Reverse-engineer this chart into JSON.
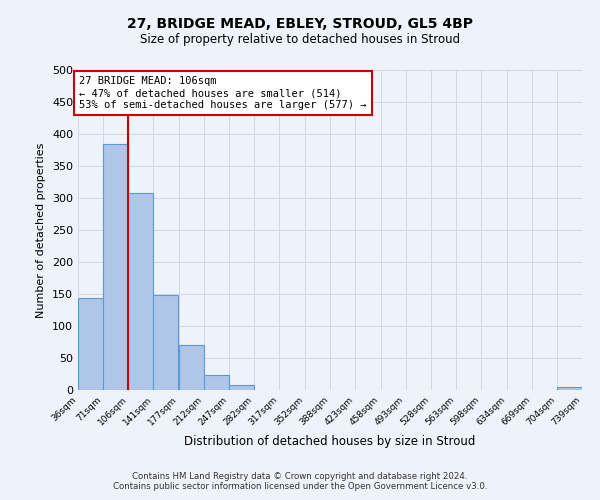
{
  "title": "27, BRIDGE MEAD, EBLEY, STROUD, GL5 4BP",
  "subtitle": "Size of property relative to detached houses in Stroud",
  "xlabel": "Distribution of detached houses by size in Stroud",
  "ylabel": "Number of detached properties",
  "footer_line1": "Contains HM Land Registry data © Crown copyright and database right 2024.",
  "footer_line2": "Contains public sector information licensed under the Open Government Licence v3.0.",
  "bin_edges": [
    36,
    71,
    106,
    141,
    177,
    212,
    247,
    282,
    317,
    352,
    388,
    423,
    458,
    493,
    528,
    563,
    598,
    634,
    669,
    704,
    739
  ],
  "bin_labels": [
    "36sqm",
    "71sqm",
    "106sqm",
    "141sqm",
    "177sqm",
    "212sqm",
    "247sqm",
    "282sqm",
    "317sqm",
    "352sqm",
    "388sqm",
    "423sqm",
    "458sqm",
    "493sqm",
    "528sqm",
    "563sqm",
    "598sqm",
    "634sqm",
    "669sqm",
    "704sqm",
    "739sqm"
  ],
  "counts": [
    143,
    384,
    308,
    149,
    70,
    24,
    8,
    0,
    0,
    0,
    0,
    0,
    0,
    0,
    0,
    0,
    0,
    0,
    0,
    5
  ],
  "bar_color": "#aec6e8",
  "bar_edge_color": "#5b9bd5",
  "property_value": 106,
  "vline_color": "#cc0000",
  "annotation_text": "27 BRIDGE MEAD: 106sqm\n← 47% of detached houses are smaller (514)\n53% of semi-detached houses are larger (577) →",
  "annotation_box_color": "#ffffff",
  "annotation_box_edge": "#cc0000",
  "ylim": [
    0,
    500
  ],
  "yticks": [
    0,
    50,
    100,
    150,
    200,
    250,
    300,
    350,
    400,
    450,
    500
  ],
  "grid_color": "#d0d8e8",
  "background_color": "#eef2fa"
}
